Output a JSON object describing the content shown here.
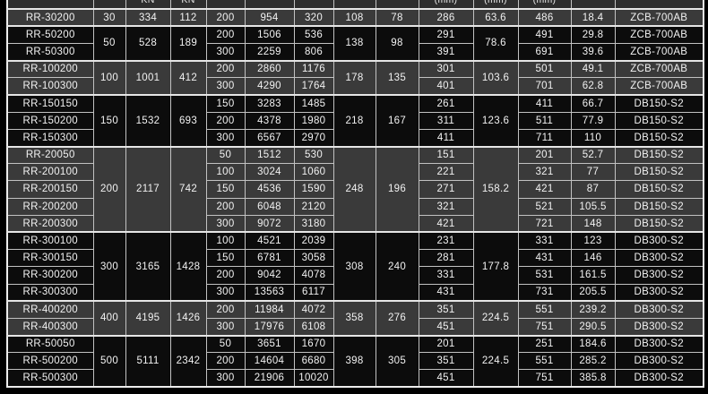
{
  "colors": {
    "row_light": "#3a3a3a",
    "row_dark": "#0c0c0c",
    "header_bg": "#2e2e2e",
    "grid_line": "#c2c2c2",
    "group_line": "#e6e6e6",
    "outer_border": "#ededed",
    "text": "#f2f2f2",
    "background": "#000000"
  },
  "header": {
    "cells": [
      "",
      "",
      "KN",
      "KN",
      "",
      "",
      "",
      "",
      "",
      "(mm)",
      "(mm)",
      "(mm)",
      "",
      ""
    ]
  },
  "table": {
    "groups": [
      {
        "shade": "light",
        "merged": {
          "capacity": "30",
          "kn1": "334",
          "kn2": "112",
          "d1": "108",
          "d2": "78",
          "mid": "63.6"
        },
        "rows": [
          {
            "model": "RR-30200",
            "stroke": "200",
            "v1": "954",
            "v2": "320",
            "mm1": "286",
            "mm2": "486",
            "v3": "18.4",
            "pump": "ZCB-700AB"
          }
        ]
      },
      {
        "shade": "dark",
        "merged": {
          "capacity": "50",
          "kn1": "528",
          "kn2": "189",
          "d1": "138",
          "d2": "98",
          "mid": "78.6"
        },
        "rows": [
          {
            "model": "RR-50200",
            "stroke": "200",
            "v1": "1506",
            "v2": "536",
            "mm1": "291",
            "mm2": "491",
            "v3": "29.8",
            "pump": "ZCB-700AB"
          },
          {
            "model": "RR-50300",
            "stroke": "300",
            "v1": "2259",
            "v2": "806",
            "mm1": "391",
            "mm2": "691",
            "v3": "39.6",
            "pump": "ZCB-700AB"
          }
        ]
      },
      {
        "shade": "light",
        "merged": {
          "capacity": "100",
          "kn1": "1001",
          "kn2": "412",
          "d1": "178",
          "d2": "135",
          "mid": "103.6"
        },
        "rows": [
          {
            "model": "RR-100200",
            "stroke": "200",
            "v1": "2860",
            "v2": "1176",
            "mm1": "301",
            "mm2": "501",
            "v3": "49.1",
            "pump": "ZCB-700AB"
          },
          {
            "model": "RR-100300",
            "stroke": "300",
            "v1": "4290",
            "v2": "1764",
            "mm1": "401",
            "mm2": "701",
            "v3": "62.8",
            "pump": "ZCB-700AB"
          }
        ]
      },
      {
        "shade": "dark",
        "merged": {
          "capacity": "150",
          "kn1": "1532",
          "kn2": "693",
          "d1": "218",
          "d2": "167",
          "mid": "123.6"
        },
        "rows": [
          {
            "model": "RR-150150",
            "stroke": "150",
            "v1": "3283",
            "v2": "1485",
            "mm1": "261",
            "mm2": "411",
            "v3": "66.7",
            "pump": "DB150-S2"
          },
          {
            "model": "RR-150200",
            "stroke": "200",
            "v1": "4378",
            "v2": "1980",
            "mm1": "311",
            "mm2": "511",
            "v3": "77.9",
            "pump": "DB150-S2"
          },
          {
            "model": "RR-150300",
            "stroke": "300",
            "v1": "6567",
            "v2": "2970",
            "mm1": "411",
            "mm2": "711",
            "v3": "110",
            "pump": "DB150-S2"
          }
        ]
      },
      {
        "shade": "light",
        "merged": {
          "capacity": "200",
          "kn1": "2117",
          "kn2": "742",
          "d1": "248",
          "d2": "196",
          "mid": "158.2"
        },
        "rows": [
          {
            "model": "RR-20050",
            "stroke": "50",
            "v1": "1512",
            "v2": "530",
            "mm1": "151",
            "mm2": "201",
            "v3": "52.7",
            "pump": "DB150-S2"
          },
          {
            "model": "RR-200100",
            "stroke": "100",
            "v1": "3024",
            "v2": "1060",
            "mm1": "221",
            "mm2": "321",
            "v3": "77",
            "pump": "DB150-S2"
          },
          {
            "model": "RR-200150",
            "stroke": "150",
            "v1": "4536",
            "v2": "1590",
            "mm1": "271",
            "mm2": "421",
            "v3": "87",
            "pump": "DB150-S2"
          },
          {
            "model": "RR-200200",
            "stroke": "200",
            "v1": "6048",
            "v2": "2120",
            "mm1": "321",
            "mm2": "521",
            "v3": "105.5",
            "pump": "DB150-S2"
          },
          {
            "model": "RR-200300",
            "stroke": "300",
            "v1": "9072",
            "v2": "3180",
            "mm1": "421",
            "mm2": "721",
            "v3": "148",
            "pump": "DB150-S2"
          }
        ]
      },
      {
        "shade": "dark",
        "merged": {
          "capacity": "300",
          "kn1": "3165",
          "kn2": "1428",
          "d1": "308",
          "d2": "240",
          "mid": "177.8"
        },
        "rows": [
          {
            "model": "RR-300100",
            "stroke": "100",
            "v1": "4521",
            "v2": "2039",
            "mm1": "231",
            "mm2": "331",
            "v3": "123",
            "pump": "DB300-S2"
          },
          {
            "model": "RR-300150",
            "stroke": "150",
            "v1": "6781",
            "v2": "3058",
            "mm1": "281",
            "mm2": "431",
            "v3": "146",
            "pump": "DB300-S2"
          },
          {
            "model": "RR-300200",
            "stroke": "200",
            "v1": "9042",
            "v2": "4078",
            "mm1": "331",
            "mm2": "531",
            "v3": "161.5",
            "pump": "DB300-S2"
          },
          {
            "model": "RR-300300",
            "stroke": "300",
            "v1": "13563",
            "v2": "6117",
            "mm1": "431",
            "mm2": "731",
            "v3": "205.5",
            "pump": "DB300-S2"
          }
        ]
      },
      {
        "shade": "light",
        "merged": {
          "capacity": "400",
          "kn1": "4195",
          "kn2": "1426",
          "d1": "358",
          "d2": "276",
          "mid": "224.5"
        },
        "rows": [
          {
            "model": "RR-400200",
            "stroke": "200",
            "v1": "11984",
            "v2": "4072",
            "mm1": "351",
            "mm2": "551",
            "v3": "239.2",
            "pump": "DB300-S2"
          },
          {
            "model": "RR-400300",
            "stroke": "300",
            "v1": "17976",
            "v2": "6108",
            "mm1": "451",
            "mm2": "751",
            "v3": "290.5",
            "pump": "DB300-S2"
          }
        ]
      },
      {
        "shade": "dark",
        "merged": {
          "capacity": "500",
          "kn1": "5111",
          "kn2": "2342",
          "d1": "398",
          "d2": "305",
          "mid": "224.5"
        },
        "rows": [
          {
            "model": "RR-50050",
            "stroke": "50",
            "v1": "3651",
            "v2": "1670",
            "mm1": "201",
            "mm2": "251",
            "v3": "184.6",
            "pump": "DB300-S2"
          },
          {
            "model": "RR-500200",
            "stroke": "200",
            "v1": "14604",
            "v2": "6680",
            "mm1": "351",
            "mm2": "551",
            "v3": "285.2",
            "pump": "DB300-S2"
          },
          {
            "model": "RR-500300",
            "stroke": "300",
            "v1": "21906",
            "v2": "10020",
            "mm1": "451",
            "mm2": "751",
            "v3": "385.8",
            "pump": "DB300-S2"
          }
        ]
      }
    ]
  }
}
